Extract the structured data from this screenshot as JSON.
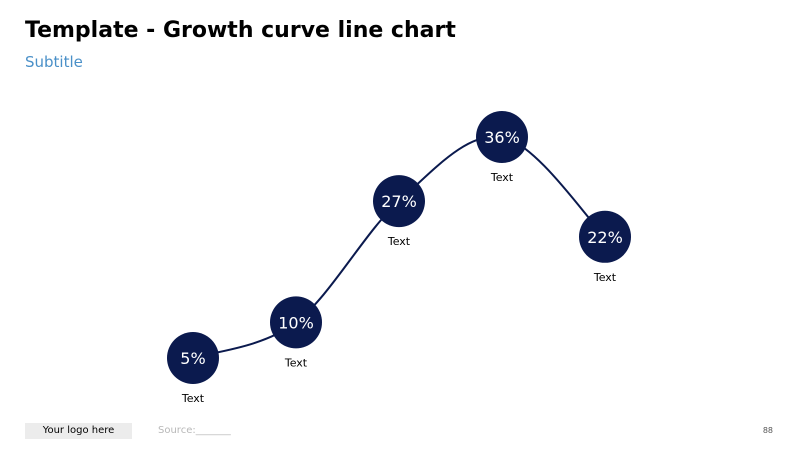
{
  "header": {
    "title": "Template - Growth curve line chart",
    "subtitle": "Subtitle"
  },
  "footer": {
    "logo_text": "Your logo here",
    "source_text": "Source:_______",
    "page_number": "88"
  },
  "colors": {
    "marker_fill": "#0b1a4e",
    "line": "#0b1a4e",
    "subtitle": "#4a90c8"
  },
  "chart_data": {
    "type": "line",
    "x": [
      1,
      2,
      3,
      4,
      5
    ],
    "values": [
      5,
      10,
      27,
      36,
      22
    ],
    "data_labels": [
      "5%",
      "10%",
      "27%",
      "36%",
      "22%"
    ],
    "category_labels": [
      "Text",
      "Text",
      "Text",
      "Text",
      "Text"
    ],
    "title": "Template - Growth curve line chart",
    "subtitle": "Subtitle",
    "xlabel": "",
    "ylabel": "",
    "ylim": [
      0,
      40
    ],
    "grid": false,
    "smooth": true
  }
}
